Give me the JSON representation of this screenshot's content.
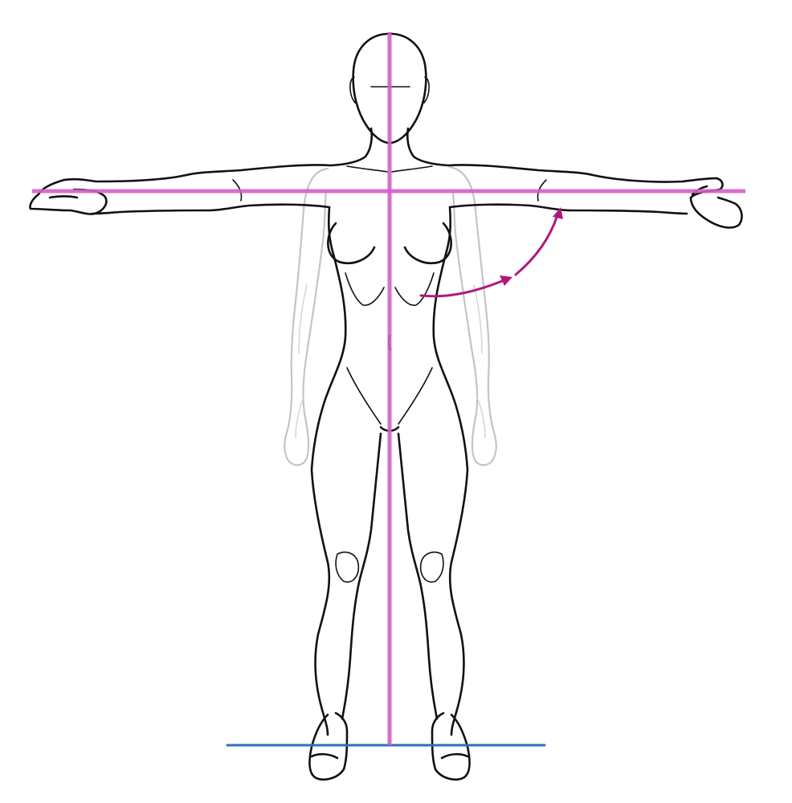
{
  "colors": {
    "line_ink": "#111111",
    "ghost_pose": "#c4c4c4",
    "guide_lines": "#d45fc9",
    "motion_arrow": "#b0187e",
    "ground_line": "#2f6fc0",
    "background": "#ffffff"
  },
  "figure": {
    "subject": "standing-figure",
    "current_pose": "arms-raised-horizontal",
    "ghost_pose": "arms-down"
  },
  "guides": [
    "vertical-center-line",
    "shoulder-horizontal-line",
    "ground-line"
  ],
  "annotation": {
    "arrow_icon": "curved-arrow-up-icon"
  }
}
